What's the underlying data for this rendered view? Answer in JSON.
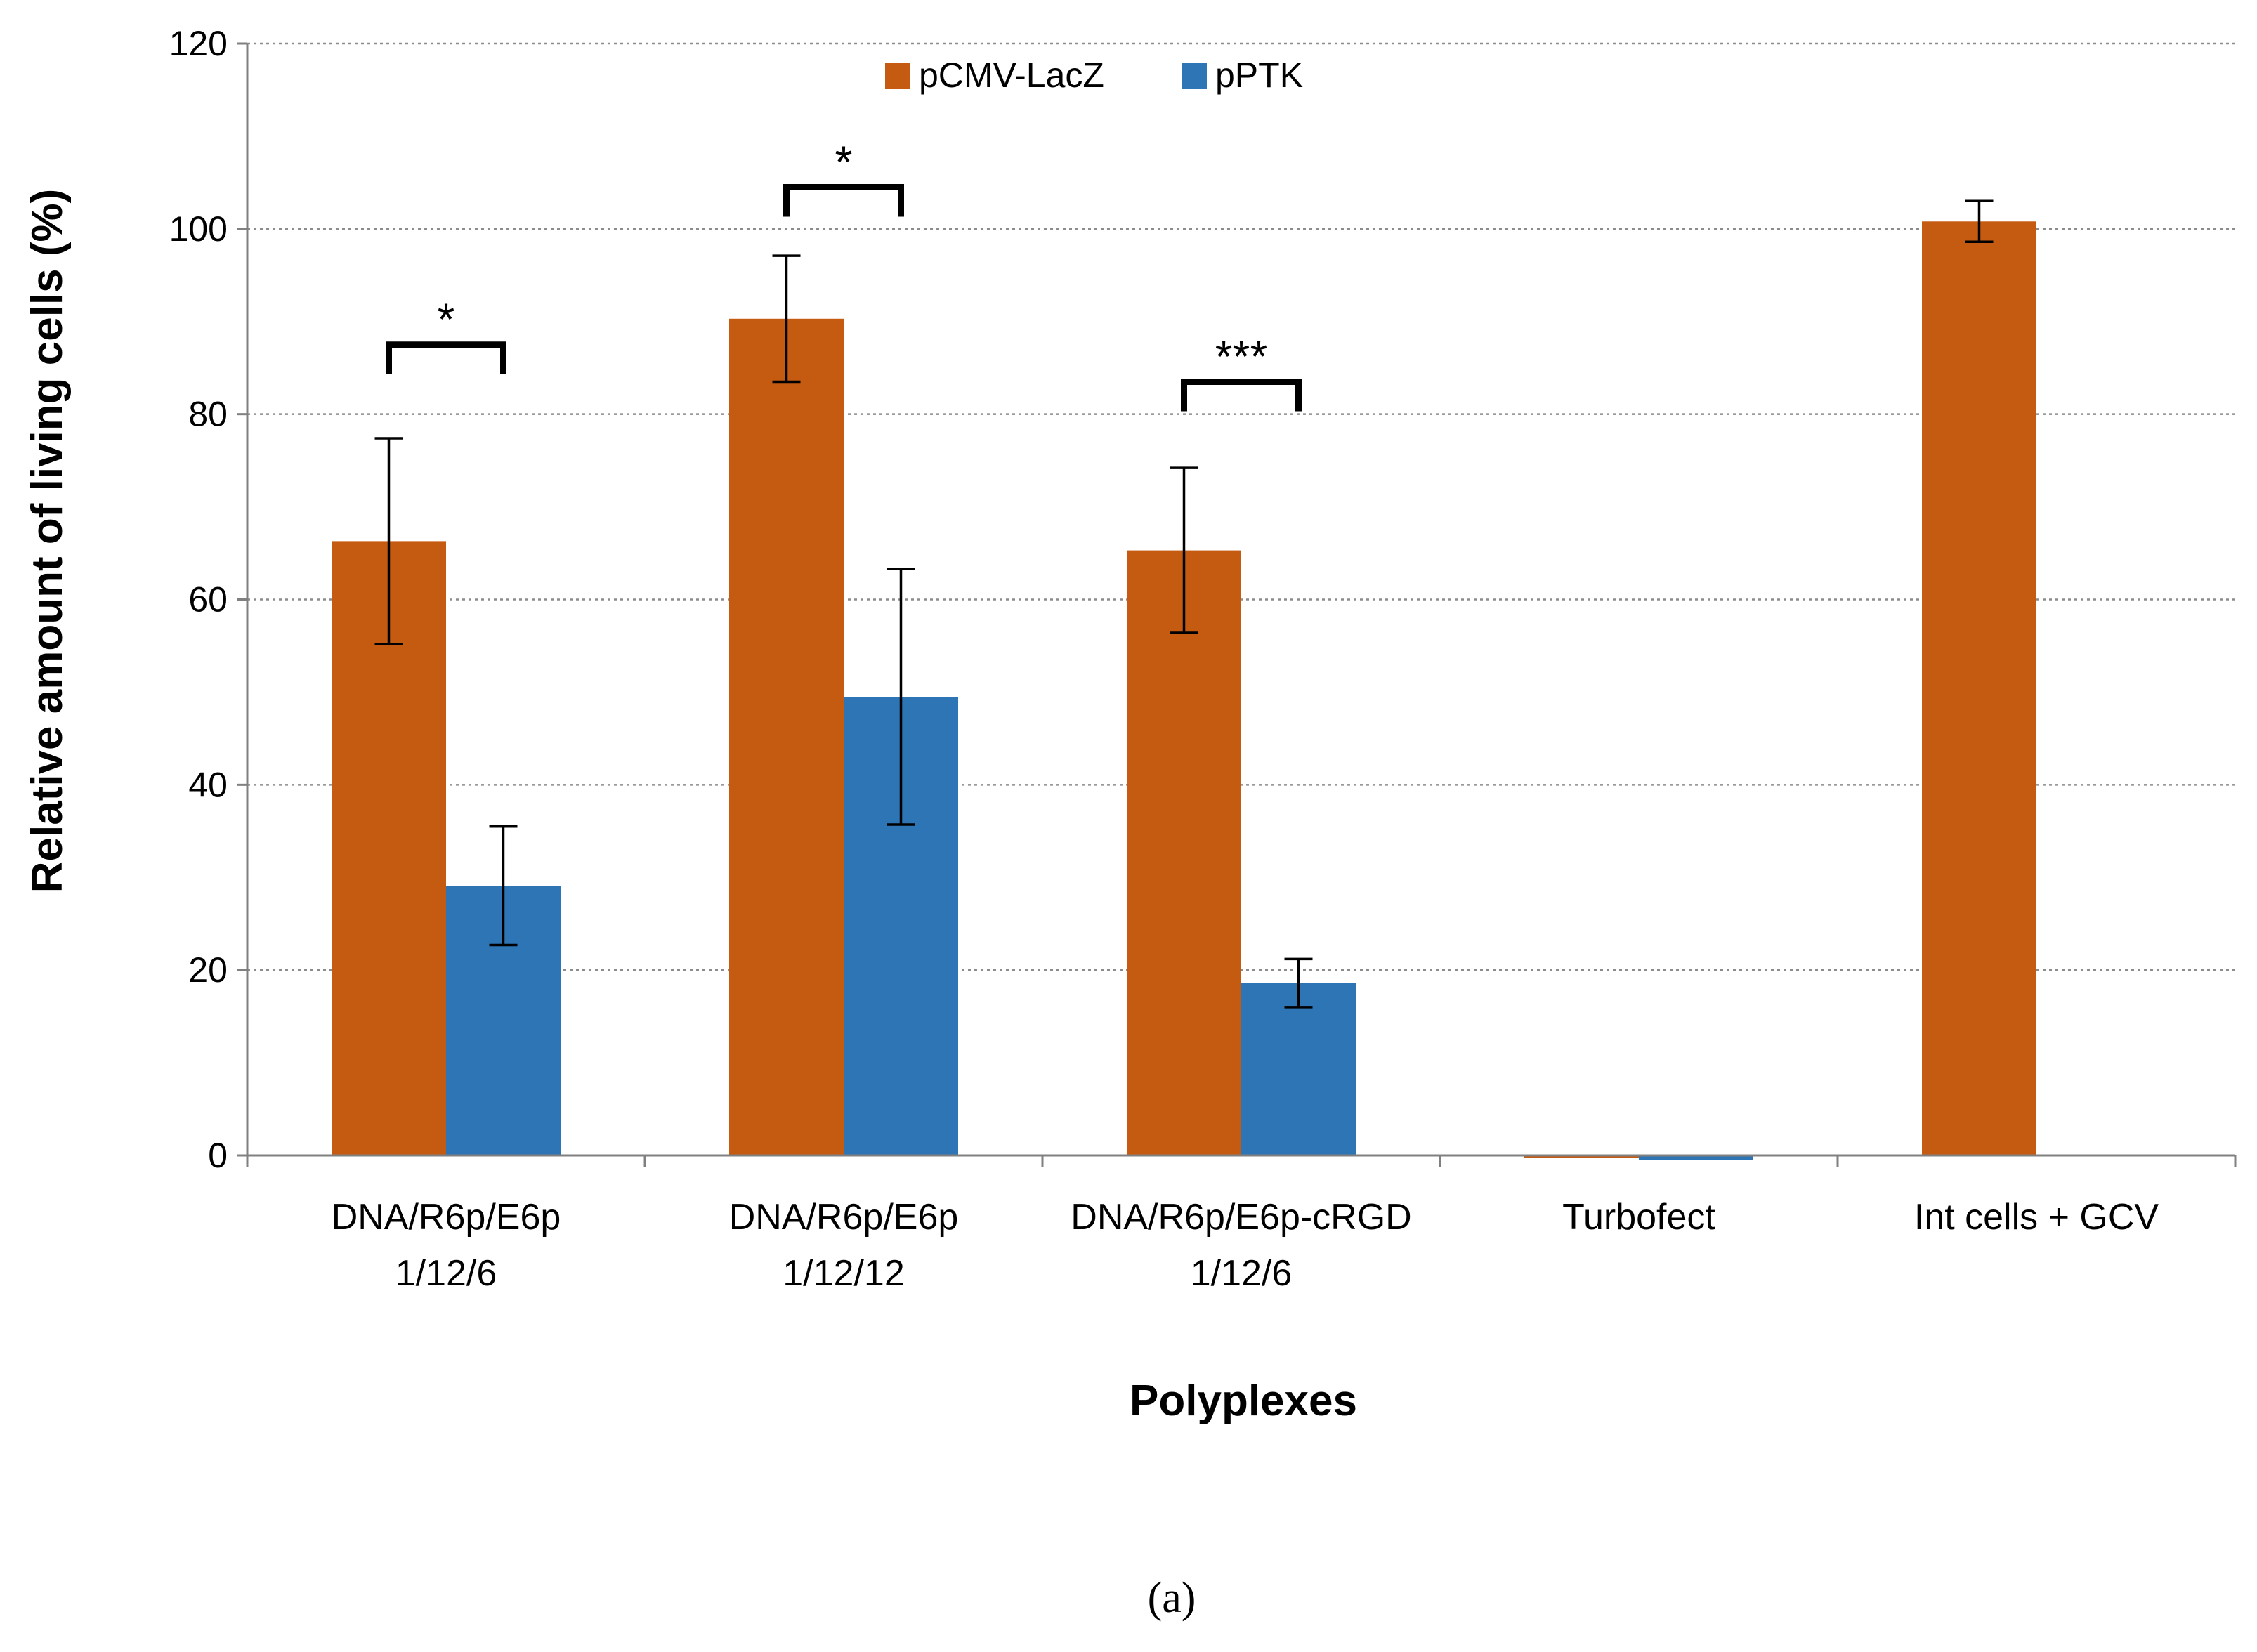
{
  "chart_data": {
    "type": "bar",
    "title": "",
    "xlabel": "Polyplexes",
    "ylabel": "Relative amount of living cells (%)",
    "ylim": [
      0,
      120
    ],
    "yticks": [
      0,
      20,
      40,
      60,
      80,
      100,
      120
    ],
    "grid": true,
    "legend_position": "top-center",
    "categories": [
      [
        "DNA/R6p/E6p",
        "1/12/6"
      ],
      [
        "DNA/R6p/E6p",
        "1/12/12"
      ],
      [
        "DNA/R6p/E6p-cRGD",
        "1/12/6"
      ],
      [
        "Turbofect"
      ],
      [
        "Int cells + GCV"
      ]
    ],
    "series": [
      {
        "name": "pCMV-LacZ",
        "color": "#C55A11",
        "values": [
          66.3,
          90.3,
          65.3,
          -0.3,
          100.8
        ],
        "errors": [
          11.1,
          6.8,
          8.9,
          0,
          2.2
        ]
      },
      {
        "name": "pPTK",
        "color": "#2E75B6",
        "values": [
          29.1,
          49.5,
          18.6,
          -0.5,
          null
        ],
        "errors": [
          6.4,
          13.8,
          2.6,
          0,
          null
        ]
      }
    ],
    "significance": [
      {
        "category_index": 0,
        "label": "*",
        "bracket_y": 87.5
      },
      {
        "category_index": 1,
        "label": "*",
        "bracket_y": 104.5
      },
      {
        "category_index": 2,
        "label": "***",
        "bracket_y": 83.5
      }
    ]
  },
  "panel_label": "(a)"
}
